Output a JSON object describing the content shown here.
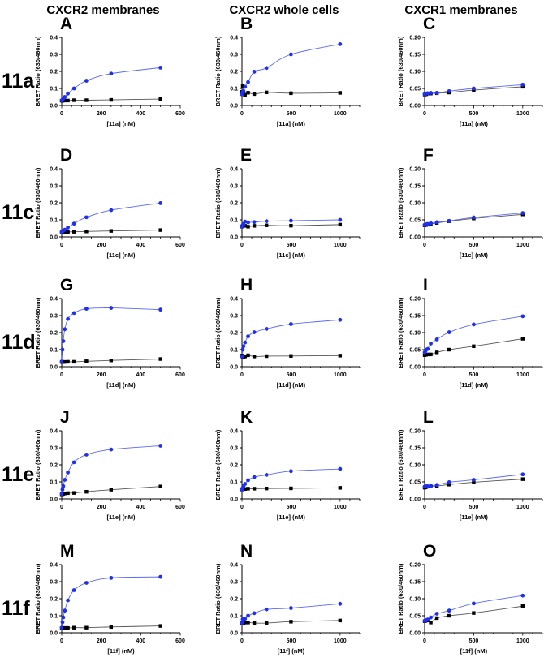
{
  "column_headers": [
    "CXCR2 membranes",
    "CXCR2 whole cells",
    "CXCR1 membranes"
  ],
  "row_labels": [
    "11a",
    "11c",
    "11d",
    "11e",
    "11f"
  ],
  "colors": {
    "total": "#1f2ff0",
    "total_line": "#5a6af5",
    "nonspecific": "#000000",
    "nonspecific_line": "#555555"
  },
  "chart_data": {
    "type": "scatter",
    "ylabel": "BRET Ratio (630/460nm)",
    "columns": [
      {
        "xlim": [
          0,
          600
        ],
        "xticks": [
          0,
          200,
          400,
          600
        ],
        "ylim": [
          0,
          0.4
        ],
        "yticks": [
          "0.0",
          "0.1",
          "0.2",
          "0.3",
          "0.4"
        ],
        "x": [
          0,
          3.9,
          7.8,
          15.6,
          31.25,
          62.5,
          125,
          250,
          500
        ]
      },
      {
        "xlim": [
          0,
          1200
        ],
        "xticks": [
          0,
          500,
          1000
        ],
        "ylim": [
          0,
          0.4
        ],
        "yticks": [
          "0.0",
          "0.1",
          "0.2",
          "0.3",
          "0.4"
        ],
        "x": [
          0,
          7.8,
          15.6,
          31.25,
          62.5,
          125,
          250,
          500,
          1000
        ]
      },
      {
        "xlim": [
          0,
          1200
        ],
        "xticks": [
          0,
          500,
          1000
        ],
        "ylim": [
          0,
          0.2
        ],
        "yticks": [
          "0.00",
          "0.05",
          "0.10",
          "0.15",
          "0.20"
        ],
        "x": [
          0,
          7.8,
          15.6,
          31.25,
          62.5,
          125,
          250,
          500,
          1000
        ]
      }
    ],
    "panels": [
      {
        "letter": "A",
        "row": 0,
        "col": 0,
        "xlabel": "[11a] (nM)",
        "total": [
          0.03,
          0.035,
          0.04,
          0.05,
          0.07,
          0.1,
          0.145,
          0.187,
          0.222
        ],
        "nonspecific": [
          0.028,
          0.028,
          0.029,
          0.029,
          0.029,
          0.031,
          0.031,
          0.033,
          0.038
        ]
      },
      {
        "letter": "B",
        "row": 0,
        "col": 1,
        "xlabel": "[11a] (nM)",
        "total": [
          0.065,
          0.08,
          0.085,
          0.11,
          0.137,
          0.198,
          0.22,
          0.3,
          0.36
        ],
        "nonspecific": [
          0.08,
          0.115,
          0.065,
          0.063,
          0.075,
          0.067,
          0.077,
          0.072,
          0.074
        ]
      },
      {
        "letter": "C",
        "row": 0,
        "col": 2,
        "xlabel": "[11a] (nM)",
        "total": [
          0.033,
          0.034,
          0.035,
          0.036,
          0.037,
          0.037,
          0.042,
          0.05,
          0.061
        ],
        "nonspecific": [
          0.032,
          0.033,
          0.033,
          0.035,
          0.035,
          0.036,
          0.038,
          0.045,
          0.055
        ]
      },
      {
        "letter": "D",
        "row": 1,
        "col": 0,
        "xlabel": "[11c] (nM)",
        "total": [
          0.028,
          0.032,
          0.036,
          0.042,
          0.055,
          0.078,
          0.115,
          0.157,
          0.198
        ],
        "nonspecific": [
          0.027,
          0.027,
          0.028,
          0.028,
          0.029,
          0.03,
          0.032,
          0.035,
          0.04
        ]
      },
      {
        "letter": "E",
        "row": 1,
        "col": 1,
        "xlabel": "[11c] (nM)",
        "total": [
          0.06,
          0.07,
          0.075,
          0.09,
          0.085,
          0.087,
          0.092,
          0.095,
          0.1
        ],
        "nonspecific": [
          0.06,
          0.065,
          0.068,
          0.065,
          0.06,
          0.065,
          0.068,
          0.066,
          0.072
        ]
      },
      {
        "letter": "F",
        "row": 1,
        "col": 2,
        "xlabel": "[11c] (nM)",
        "total": [
          0.035,
          0.036,
          0.037,
          0.038,
          0.04,
          0.043,
          0.047,
          0.057,
          0.07
        ],
        "nonspecific": [
          0.034,
          0.035,
          0.035,
          0.036,
          0.038,
          0.041,
          0.046,
          0.054,
          0.066
        ]
      },
      {
        "letter": "G",
        "row": 2,
        "col": 0,
        "xlabel": "[11d] (nM)",
        "total": [
          0.03,
          0.1,
          0.15,
          0.22,
          0.28,
          0.315,
          0.34,
          0.345,
          0.335
        ],
        "nonspecific": [
          0.028,
          0.028,
          0.028,
          0.028,
          0.029,
          0.029,
          0.032,
          0.037,
          0.045
        ]
      },
      {
        "letter": "H",
        "row": 2,
        "col": 1,
        "xlabel": "[11d] (nM)",
        "total": [
          0.06,
          0.1,
          0.12,
          0.142,
          0.178,
          0.202,
          0.222,
          0.25,
          0.275
        ],
        "nonspecific": [
          0.065,
          0.055,
          0.055,
          0.06,
          0.067,
          0.06,
          0.062,
          0.063,
          0.065
        ]
      },
      {
        "letter": "I",
        "row": 2,
        "col": 2,
        "xlabel": "[11d] (nM)",
        "total": [
          0.042,
          0.046,
          0.05,
          0.052,
          0.068,
          0.08,
          0.101,
          0.124,
          0.148
        ],
        "nonspecific": [
          0.034,
          0.035,
          0.035,
          0.036,
          0.036,
          0.042,
          0.05,
          0.06,
          0.082
        ]
      },
      {
        "letter": "J",
        "row": 3,
        "col": 0,
        "xlabel": "[11e] (nM)",
        "total": [
          0.03,
          0.055,
          0.075,
          0.112,
          0.155,
          0.215,
          0.26,
          0.29,
          0.312
        ],
        "nonspecific": [
          0.027,
          0.028,
          0.03,
          0.032,
          0.034,
          0.035,
          0.042,
          0.054,
          0.073
        ]
      },
      {
        "letter": "K",
        "row": 3,
        "col": 1,
        "xlabel": "[11e] (nM)",
        "total": [
          0.055,
          0.065,
          0.075,
          0.088,
          0.11,
          0.128,
          0.141,
          0.163,
          0.176
        ],
        "nonspecific": [
          0.055,
          0.057,
          0.058,
          0.058,
          0.06,
          0.06,
          0.061,
          0.062,
          0.065
        ]
      },
      {
        "letter": "L",
        "row": 3,
        "col": 2,
        "xlabel": "[11e] (nM)",
        "total": [
          0.036,
          0.036,
          0.037,
          0.037,
          0.038,
          0.041,
          0.049,
          0.056,
          0.072
        ],
        "nonspecific": [
          0.033,
          0.034,
          0.035,
          0.036,
          0.037,
          0.038,
          0.042,
          0.049,
          0.058
        ]
      },
      {
        "letter": "M",
        "row": 4,
        "col": 0,
        "xlabel": "[11f] (nM)",
        "total": [
          0.03,
          0.062,
          0.09,
          0.13,
          0.19,
          0.25,
          0.293,
          0.322,
          0.328
        ],
        "nonspecific": [
          0.027,
          0.027,
          0.028,
          0.028,
          0.028,
          0.03,
          0.03,
          0.034,
          0.04
        ]
      },
      {
        "letter": "N",
        "row": 4,
        "col": 1,
        "xlabel": "[11f] (nM)",
        "total": [
          0.058,
          0.08,
          0.082,
          0.082,
          0.1,
          0.115,
          0.137,
          0.145,
          0.17
        ],
        "nonspecific": [
          0.057,
          0.055,
          0.058,
          0.06,
          0.06,
          0.057,
          0.057,
          0.065,
          0.072
        ]
      },
      {
        "letter": "O",
        "row": 4,
        "col": 2,
        "xlabel": "[11f] (nM)",
        "total": [
          0.035,
          0.036,
          0.037,
          0.039,
          0.045,
          0.056,
          0.065,
          0.086,
          0.109
        ],
        "nonspecific": [
          0.034,
          0.035,
          0.036,
          0.036,
          0.03,
          0.043,
          0.05,
          0.058,
          0.078
        ]
      }
    ]
  }
}
